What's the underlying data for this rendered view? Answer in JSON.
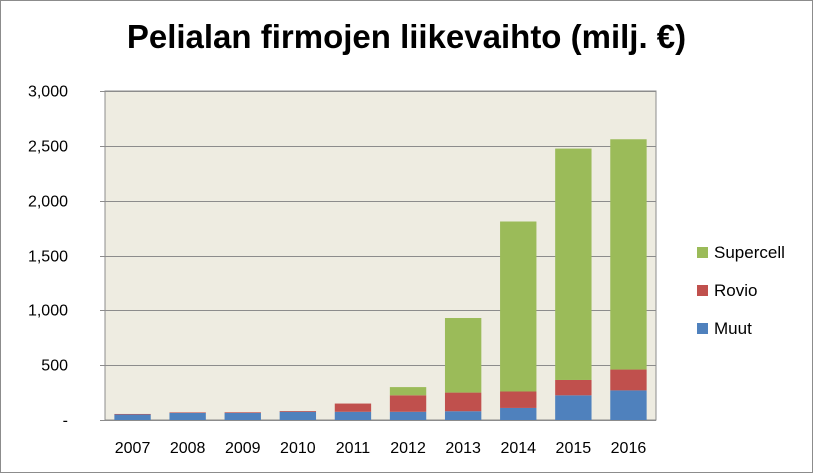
{
  "chart_data": {
    "type": "bar",
    "stacked": true,
    "title": "Pelialan firmojen liikevaihto  (milj. €)",
    "xlabel": "",
    "ylabel": "",
    "categories": [
      "2007",
      "2008",
      "2009",
      "2010",
      "2011",
      "2012",
      "2013",
      "2014",
      "2015",
      "2016"
    ],
    "series": [
      {
        "name": "Muut",
        "color": "#4f81bd",
        "values": [
          50,
          65,
          65,
          75,
          75,
          75,
          80,
          110,
          225,
          270
        ]
      },
      {
        "name": "Rovio",
        "color": "#c0504d",
        "values": [
          5,
          5,
          6,
          7,
          75,
          150,
          170,
          150,
          140,
          190
        ]
      },
      {
        "name": "Supercell",
        "color": "#9bbb59",
        "values": [
          0,
          0,
          0,
          0,
          0,
          75,
          680,
          1550,
          2110,
          2100
        ]
      }
    ],
    "ylim": [
      0,
      3000
    ],
    "yticks": [
      0,
      500,
      1000,
      1500,
      2000,
      2500,
      3000
    ],
    "ytick_labels": [
      "-",
      "500",
      "1,000",
      "1,500",
      "2,000",
      "2,500",
      "3,000"
    ],
    "grid": true,
    "legend_position": "right",
    "plot_background": "#eeece1"
  }
}
